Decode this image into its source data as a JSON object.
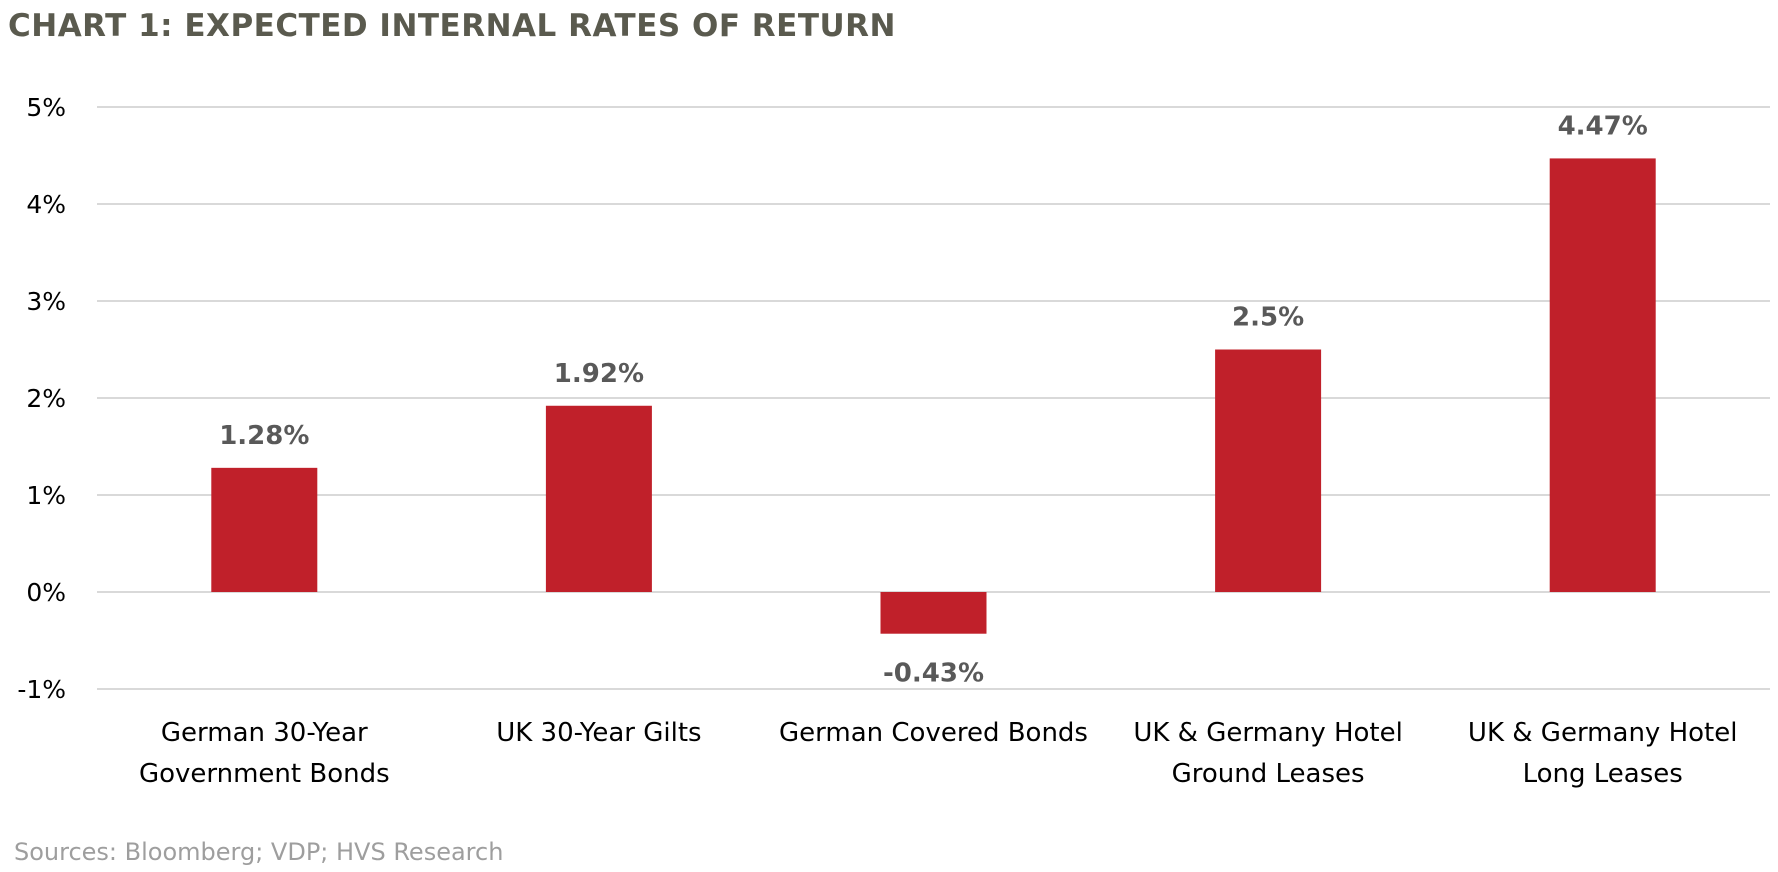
{
  "chart_data": {
    "type": "bar",
    "title": "CHART 1: EXPECTED INTERNAL RATES OF RETURN",
    "categories": [
      [
        "German 30-Year",
        "Government Bonds"
      ],
      [
        "UK 30-Year Gilts"
      ],
      [
        "German Covered Bonds"
      ],
      [
        "UK & Germany Hotel",
        "Ground Leases"
      ],
      [
        "UK & Germany Hotel",
        "Long Leases"
      ]
    ],
    "values": [
      1.28,
      1.92,
      -0.43,
      2.5,
      4.47
    ],
    "data_labels": [
      "1.28%",
      "1.92%",
      "-0.43%",
      "2.5%",
      "4.47%"
    ],
    "yticks": [
      5,
      4,
      3,
      2,
      1,
      0,
      -1
    ],
    "ytick_labels": [
      "5%",
      "4%",
      "3%",
      "2%",
      "1%",
      "0%",
      "-1%"
    ],
    "ylim": [
      -1,
      5
    ],
    "xlabel": "",
    "ylabel": "",
    "grid": true,
    "bar_color": "#c0202a",
    "source": "Sources: Bloomberg; VDP; HVS Research"
  }
}
